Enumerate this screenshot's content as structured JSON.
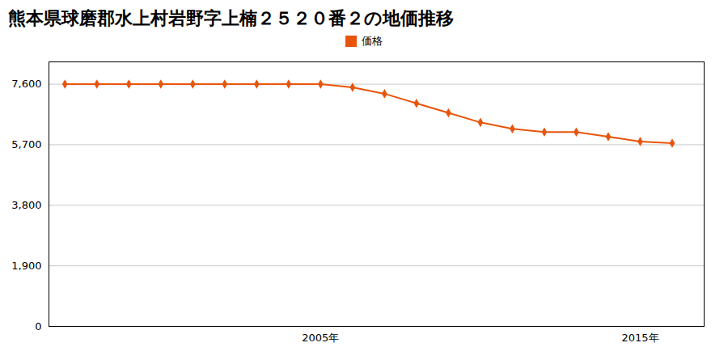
{
  "chart_data": {
    "type": "line",
    "title": "熊本県球磨郡水上村岩野字上楠２５２０番２の地価推移",
    "x": [
      1997,
      1998,
      1999,
      2000,
      2001,
      2002,
      2003,
      2004,
      2005,
      2006,
      2007,
      2008,
      2009,
      2010,
      2011,
      2012,
      2013,
      2014,
      2015,
      2016
    ],
    "series": [
      {
        "name": "価格",
        "color": "#e8540a",
        "marker": "diamond",
        "values": [
          7600,
          7600,
          7600,
          7600,
          7600,
          7600,
          7600,
          7600,
          7600,
          7500,
          7300,
          7000,
          6700,
          6400,
          6200,
          6100,
          6100,
          5950,
          5800,
          5750
        ]
      }
    ],
    "xlim": [
      1996.5,
      2017.0
    ],
    "xticks": [
      {
        "value": 2005,
        "label": "2005年"
      },
      {
        "value": 2015,
        "label": "2015年"
      }
    ],
    "ylim": [
      0,
      8300
    ],
    "yticks": [
      0,
      {
        "value": 1900,
        "label": "1,900"
      },
      {
        "value": 3800,
        "label": "3,800"
      },
      {
        "value": 5700,
        "label": "5,700"
      },
      {
        "value": 7600,
        "label": "7,600"
      }
    ],
    "grid": true,
    "legend": "top"
  }
}
